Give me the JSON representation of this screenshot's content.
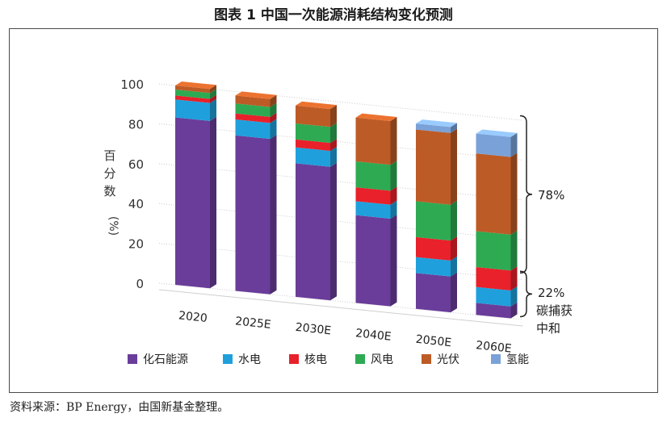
{
  "title": "图表 1  中国一次能源消耗结构变化预测",
  "source": "资料来源：BP Energy，由国新基金整理。",
  "colors": {
    "化石能源": "#6a3d9a",
    "水电": "#1fa0dc",
    "核电": "#e8212b",
    "风电": "#2eaa52",
    "光伏": "#bd5b26",
    "氢能": "#7aa2d8"
  },
  "chart_data": {
    "type": "bar",
    "stacked": true,
    "three_d": true,
    "categories": [
      "2020",
      "2025E",
      "2030E",
      "2040E",
      "2050E",
      "2060E"
    ],
    "ylabel": "百分数(%)",
    "ylim": [
      0,
      100
    ],
    "yticks": [
      0,
      20,
      40,
      60,
      80,
      100
    ],
    "legend_position": "bottom",
    "series": [
      {
        "name": "化石能源",
        "values": [
          84,
          78,
          67,
          44,
          18,
          6
        ]
      },
      {
        "name": "水电",
        "values": [
          9,
          8,
          8,
          7,
          8,
          8
        ]
      },
      {
        "name": "核电",
        "values": [
          2,
          3,
          4,
          7,
          10,
          10
        ]
      },
      {
        "name": "风电",
        "values": [
          3,
          5,
          8,
          13,
          18,
          18
        ]
      },
      {
        "name": "光伏",
        "values": [
          2,
          4,
          9,
          22,
          36,
          39
        ]
      },
      {
        "name": "氢能",
        "values": [
          0,
          0,
          0,
          0,
          3,
          10
        ]
      }
    ],
    "annotations": [
      {
        "label": "78%",
        "range": [
          22,
          100
        ]
      },
      {
        "label": "22%",
        "sublabel": "碳捕获中和",
        "range": [
          0,
          22
        ]
      }
    ]
  }
}
